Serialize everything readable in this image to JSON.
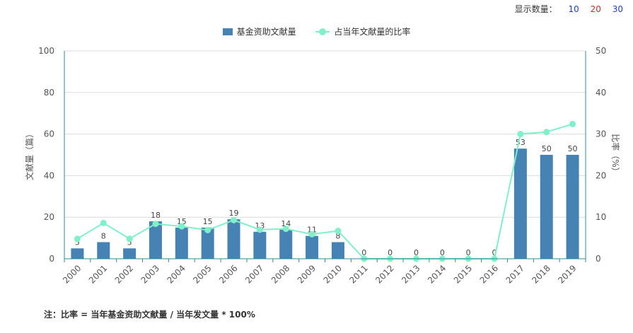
{
  "header": {
    "display_label": "显示数量：",
    "options": [
      {
        "label": "10",
        "color": "#1f3fbf"
      },
      {
        "label": "20",
        "color": "#d6262b"
      },
      {
        "label": "30",
        "color": "#1f3fbf"
      }
    ]
  },
  "note": "注：比率 = 当年基金资助文献量 / 当年发文量 * 100%",
  "chart_data": {
    "type": "bar",
    "categories": [
      "2000",
      "2001",
      "2002",
      "2003",
      "2004",
      "2005",
      "2006",
      "2007",
      "2008",
      "2009",
      "2010",
      "2011",
      "2012",
      "2013",
      "2014",
      "2015",
      "2016",
      "2017",
      "2018",
      "2019"
    ],
    "series": [
      {
        "name": "基金资助文献量",
        "type": "bar",
        "axis": "left",
        "color": "#4682b4",
        "values": [
          5,
          8,
          5,
          18,
          15,
          15,
          19,
          13,
          14,
          11,
          8,
          0,
          0,
          0,
          0,
          0,
          0,
          53,
          50,
          50
        ]
      },
      {
        "name": "占当年文献量的比率",
        "type": "line",
        "axis": "right",
        "color": "#7ff0c8",
        "values": [
          4.8,
          8.6,
          4.8,
          8.4,
          7.8,
          6.9,
          9.3,
          7.0,
          7.2,
          5.9,
          6.7,
          0,
          0,
          0,
          0,
          0,
          0,
          30.0,
          30.5,
          32.4
        ]
      }
    ],
    "ylabel": "文献量（篇）",
    "ylabel_right": "比率（%）",
    "ylim": [
      0,
      100
    ],
    "ylim_right": [
      0,
      50
    ],
    "yticks": [
      0,
      20,
      40,
      60,
      80,
      100
    ],
    "yticks_right": [
      0,
      10,
      20,
      30,
      40,
      50
    ],
    "grid": true,
    "legend_position": "top-center"
  }
}
